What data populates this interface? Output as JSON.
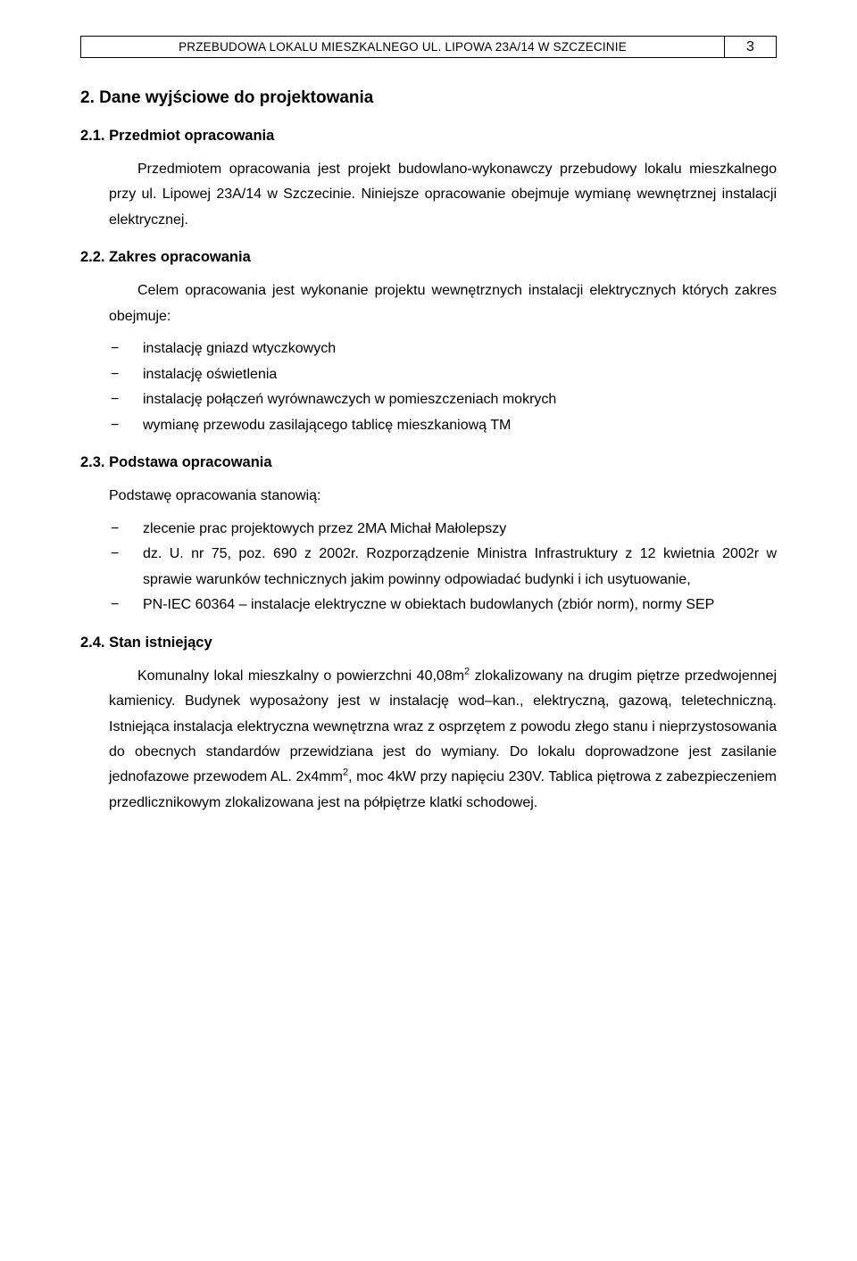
{
  "header": {
    "title": "PRZEBUDOWA LOKALU MIESZKALNEGO UL. LIPOWA 23A/14  W SZCZECINIE",
    "page_number": "3"
  },
  "section2": {
    "heading": "2. Dane wyjściowe do projektowania",
    "s21": {
      "heading": "2.1. Przedmiot opracowania",
      "para": "Przedmiotem opracowania jest projekt budowlano-wykonawczy przebudowy lokalu mieszkalnego przy ul. Lipowej 23A/14 w Szczecinie. Niniejsze opracowanie obejmuje wymianę wewnętrznej instalacji elektrycznej."
    },
    "s22": {
      "heading": "2.2. Zakres opracowania",
      "para": "Celem opracowania jest wykonanie projektu wewnętrznych instalacji elektrycznych których zakres obejmuje:",
      "items": {
        "0": "instalację gniazd wtyczkowych",
        "1": "instalację oświetlenia",
        "2": "instalację połączeń wyrównawczych w pomieszczeniach mokrych",
        "3": "wymianę przewodu zasilającego tablicę mieszkaniową TM"
      }
    },
    "s23": {
      "heading": "2.3. Podstawa opracowania",
      "intro": "Podstawę opracowania stanowią:",
      "items": {
        "0": "zlecenie prac projektowych przez 2MA Michał Małolepszy",
        "1": "dz. U. nr 75, poz. 690 z 2002r. Rozporządzenie Ministra Infrastruktury z 12 kwietnia 2002r w sprawie warunków technicznych jakim powinny odpowiadać budynki i ich usytuowanie,",
        "2": "PN-IEC 60364 – instalacje elektryczne w obiektach budowlanych (zbiór norm), normy SEP"
      }
    },
    "s24": {
      "heading": "2.4. Stan istniejący",
      "para_before_sup1": "Komunalny lokal mieszkalny o powierzchni 40,08m",
      "sup1": "2",
      "para_after_sup1": " zlokalizowany na drugim piętrze przedwojennej kamienicy. Budynek wyposażony jest w instalację wod–kan., elektryczną, gazową, teletechniczną. Istniejąca instalacja elektryczna wewnętrzna wraz z osprzętem z powodu złego stanu i nieprzystosowania do obecnych standardów przewidziana jest do wymiany. Do lokalu doprowadzone jest zasilanie jednofazowe przewodem AL. 2x4mm",
      "sup2": "2",
      "para_after_sup2": ", moc 4kW przy napięciu 230V. Tablica piętrowa z zabezpieczeniem przedlicznikowym zlokalizowana jest na półpiętrze klatki schodowej."
    }
  }
}
